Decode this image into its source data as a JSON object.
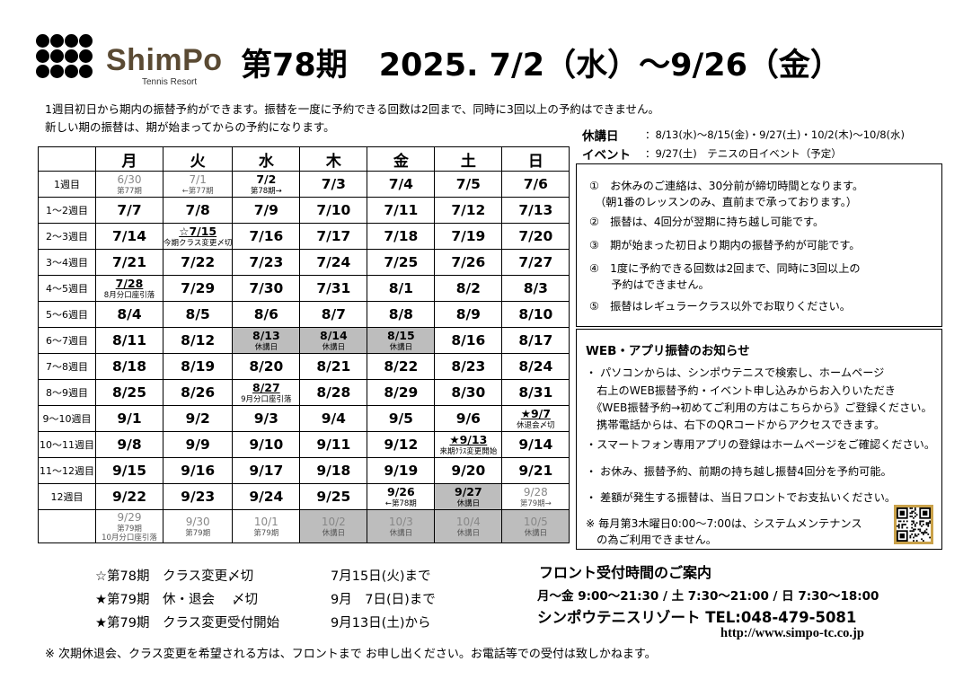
{
  "logo": {
    "brand": "ShimPo",
    "sub": "Tennis Resort",
    "dot_letters": [
      "s",
      "h",
      "i",
      "",
      "m",
      "p",
      "o",
      "",
      "",
      "",
      "",
      ""
    ]
  },
  "title": "第78期　2025. 7/2（水）～9/26（金）",
  "intro": [
    "1週目初日から期内の振替予約ができます。振替を一度に予約できる回数は2回まで、同時に3回以上の予約はできません。",
    "新しい期の振替は、期が始まってからの予約になります。"
  ],
  "calendar": {
    "headers": [
      "",
      "月",
      "火",
      "水",
      "木",
      "金",
      "土",
      "日"
    ],
    "rows": [
      {
        "week": "1週目",
        "cells": [
          {
            "d": "6/30",
            "s": "第77期",
            "faded": true
          },
          {
            "d": "7/1",
            "s": "←第77期",
            "faded": true
          },
          {
            "d": "7/2",
            "s": "第78期→",
            "sm": true
          },
          {
            "d": "7/3"
          },
          {
            "d": "7/4"
          },
          {
            "d": "7/5"
          },
          {
            "d": "7/6"
          }
        ]
      },
      {
        "week": "1～2週目",
        "cells": [
          {
            "d": "7/7"
          },
          {
            "d": "7/8"
          },
          {
            "d": "7/9"
          },
          {
            "d": "7/10"
          },
          {
            "d": "7/11"
          },
          {
            "d": "7/12"
          },
          {
            "d": "7/13"
          }
        ]
      },
      {
        "week": "2～3週目",
        "cells": [
          {
            "d": "7/14"
          },
          {
            "d": "☆7/15",
            "s": "今期クラス変更〆切",
            "sm": true,
            "ul": true
          },
          {
            "d": "7/16"
          },
          {
            "d": "7/17"
          },
          {
            "d": "7/18"
          },
          {
            "d": "7/19"
          },
          {
            "d": "7/20"
          }
        ]
      },
      {
        "week": "3～4週目",
        "cells": [
          {
            "d": "7/21"
          },
          {
            "d": "7/22"
          },
          {
            "d": "7/23"
          },
          {
            "d": "7/24"
          },
          {
            "d": "7/25"
          },
          {
            "d": "7/26"
          },
          {
            "d": "7/27"
          }
        ]
      },
      {
        "week": "4～5週目",
        "cells": [
          {
            "d": "7/28",
            "s": "8月分口座引落",
            "sm": true,
            "ul": true
          },
          {
            "d": "7/29"
          },
          {
            "d": "7/30"
          },
          {
            "d": "7/31"
          },
          {
            "d": "8/1"
          },
          {
            "d": "8/2"
          },
          {
            "d": "8/3"
          }
        ]
      },
      {
        "week": "5～6週目",
        "cells": [
          {
            "d": "8/4"
          },
          {
            "d": "8/5"
          },
          {
            "d": "8/6"
          },
          {
            "d": "8/7"
          },
          {
            "d": "8/8"
          },
          {
            "d": "8/9"
          },
          {
            "d": "8/10"
          }
        ]
      },
      {
        "week": "6～7週目",
        "cells": [
          {
            "d": "8/11"
          },
          {
            "d": "8/12"
          },
          {
            "d": "8/13",
            "s": "休講日",
            "grey": true,
            "sm": true
          },
          {
            "d": "8/14",
            "s": "休講日",
            "grey": true,
            "sm": true
          },
          {
            "d": "8/15",
            "s": "休講日",
            "grey": true,
            "sm": true
          },
          {
            "d": "8/16"
          },
          {
            "d": "8/17"
          }
        ]
      },
      {
        "week": "7～8週目",
        "cells": [
          {
            "d": "8/18"
          },
          {
            "d": "8/19"
          },
          {
            "d": "8/20"
          },
          {
            "d": "8/21"
          },
          {
            "d": "8/22"
          },
          {
            "d": "8/23"
          },
          {
            "d": "8/24"
          }
        ]
      },
      {
        "week": "8～9週目",
        "cells": [
          {
            "d": "8/25"
          },
          {
            "d": "8/26"
          },
          {
            "d": "8/27",
            "s": "9月分口座引落",
            "sm": true,
            "ul": true
          },
          {
            "d": "8/28"
          },
          {
            "d": "8/29"
          },
          {
            "d": "8/30"
          },
          {
            "d": "8/31"
          }
        ]
      },
      {
        "week": "9～10週目",
        "cells": [
          {
            "d": "9/1"
          },
          {
            "d": "9/2"
          },
          {
            "d": "9/3"
          },
          {
            "d": "9/4"
          },
          {
            "d": "9/5"
          },
          {
            "d": "9/6"
          },
          {
            "d": "★9/7",
            "s": "休退会〆切",
            "sm": true,
            "ul": true
          }
        ]
      },
      {
        "week": "10～11週目",
        "cells": [
          {
            "d": "9/8"
          },
          {
            "d": "9/9"
          },
          {
            "d": "9/10"
          },
          {
            "d": "9/11"
          },
          {
            "d": "9/12"
          },
          {
            "d": "★9/13",
            "s": "来期ｸﾗｽ変更開始",
            "sm": true,
            "ul": true
          },
          {
            "d": "9/14"
          }
        ]
      },
      {
        "week": "11～12週目",
        "cells": [
          {
            "d": "9/15"
          },
          {
            "d": "9/16"
          },
          {
            "d": "9/17"
          },
          {
            "d": "9/18"
          },
          {
            "d": "9/19"
          },
          {
            "d": "9/20"
          },
          {
            "d": "9/21"
          }
        ]
      },
      {
        "week": "12週目",
        "cells": [
          {
            "d": "9/22"
          },
          {
            "d": "9/23"
          },
          {
            "d": "9/24"
          },
          {
            "d": "9/25"
          },
          {
            "d": "9/26",
            "s": "←第78期",
            "sm": true
          },
          {
            "d": "9/27",
            "s": "休講日",
            "grey": true,
            "sm": true
          },
          {
            "d": "9/28",
            "s": "第79期→",
            "faded": true
          }
        ]
      },
      {
        "week": "",
        "cells": [
          {
            "d": "9/29",
            "s": "第79期",
            "s2": "10月分口座引落",
            "faded": true
          },
          {
            "d": "9/30",
            "s": "第79期",
            "faded": true
          },
          {
            "d": "10/1",
            "s": "第79期",
            "faded": true
          },
          {
            "d": "10/2",
            "s": "休講日",
            "grey": true,
            "faded": true
          },
          {
            "d": "10/3",
            "s": "休講日",
            "grey": true,
            "faded": true
          },
          {
            "d": "10/4",
            "s": "休講日",
            "grey": true,
            "faded": true
          },
          {
            "d": "10/5",
            "s": "休講日",
            "grey": true,
            "faded": true
          }
        ]
      }
    ]
  },
  "holiday": {
    "label": "休講日",
    "text": "：8/13(水)～8/15(金)・9/27(土)・10/2(木)～10/8(水)"
  },
  "event": {
    "label": "イベント",
    "text": "：9/27(土)　テニスの日イベント（予定）"
  },
  "notes": [
    "①　お休みのご連絡は、30分前が締切時間となります。",
    "　（朝1番のレッスンのみ、直前まで承っております。）",
    "②　振替は、4回分が翌期に持ち越し可能です。",
    "③　期が始まった初日より期内の振替予約が可能です。",
    "④　1度に予約できる回数は2回まで、同時に3回以上の",
    "　　予約はできません。",
    "⑤　振替はレギュラークラス以外でお取りください。"
  ],
  "web": {
    "title": "WEB・アプリ振替のお知らせ",
    "lines": [
      "・ パソコンからは、シンポウテニスで検索し、ホームページ",
      "　右上のWEB振替予約・イベント申し込みからお入りいただき",
      "　《WEB振替予約→初めてご利用の方はこちらから》ご登録ください。",
      "　携帯電話からは、右下のQRコードからアクセスできます。",
      "・スマートフォン専用アプリの登録はホームページをご確認ください。",
      "・ お休み、振替予約、前期の持ち越し振替4回分を予約可能。",
      "・ 差額が発生する振替は、当日フロントでお支払いください。",
      "※ 毎月第3木曜日0:00～7:00は、システムメンテナンス",
      "　の為ご利用できません。"
    ]
  },
  "deadlines": [
    {
      "label": "☆第78期　クラス変更〆切",
      "date": "7月15日(火)まで"
    },
    {
      "label": "★第79期　休・退会　 〆切",
      "date": "9月　7日(日)まで"
    },
    {
      "label": "★第79期　クラス変更受付開始",
      "date": "9月13日(土)から"
    }
  ],
  "front": {
    "title": "フロント受付時間のご案内",
    "hours": "月～金 9:00～21:30 / 土 7:30～21:00 / 日 7:30～18:00",
    "club": "シンポウテニスリゾート TEL:048-479-5081",
    "url": "http://www.simpo-tc.co.jp"
  },
  "footer": "※ 次期休退会、クラス変更を希望される方は、フロントまで お申し出ください。お電話等での受付は致しかねます。"
}
